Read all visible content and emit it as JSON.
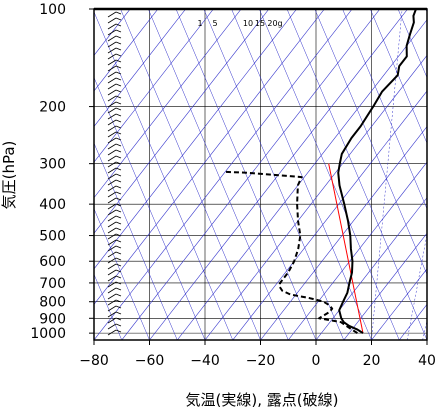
{
  "chart_data": {
    "type": "line",
    "title": "",
    "xlabel": "気温(実線), 露点(破線)",
    "ylabel": "気圧(hPa)",
    "xlim": [
      -80,
      40
    ],
    "ylim": [
      1050,
      100
    ],
    "y_scale": "log",
    "x_ticks": [
      "−80",
      "−60",
      "−40",
      "−20",
      "0",
      "20",
      "40"
    ],
    "y_ticks": [
      "100",
      "200",
      "300",
      "400",
      "500",
      "600",
      "700",
      "800",
      "900",
      "1000"
    ],
    "x_tick_values": [
      -80,
      -60,
      -40,
      -20,
      0,
      20,
      40
    ],
    "y_tick_values": [
      100,
      200,
      300,
      400,
      500,
      600,
      700,
      800,
      900,
      1000
    ],
    "mixing_ratio_labels": [
      "1",
      "5",
      "10",
      "15",
      "20g"
    ],
    "mixing_ratio_values": [
      1,
      5,
      10,
      15,
      20
    ],
    "grid": true,
    "series": [
      {
        "color": "#000000",
        "style": "solid",
        "pressure": [
          1000,
          975,
          950,
          925,
          900,
          850,
          800,
          750,
          700,
          650,
          600,
          550,
          500,
          450,
          400,
          350,
          320,
          300,
          280,
          250,
          230,
          200,
          180,
          160,
          150,
          140,
          130,
          120,
          110,
          105,
          100
        ],
        "values": [
          15,
          12,
          8,
          5,
          3,
          0,
          -1,
          -2,
          -4,
          -6,
          -9,
          -13,
          -17,
          -22,
          -28,
          -35,
          -39,
          -41,
          -43,
          -44,
          -44,
          -45,
          -46,
          -45,
          -47,
          -47,
          -50,
          -52,
          -54,
          -56,
          -57
        ]
      },
      {
        "color": "#000000",
        "style": "dashed",
        "pressure": [
          1000,
          975,
          950,
          925,
          900,
          880,
          860,
          840,
          820,
          800,
          780,
          760,
          740,
          720,
          700,
          650,
          600,
          550,
          500,
          450,
          400,
          350,
          330,
          320,
          318
        ],
        "values": [
          13,
          10,
          7,
          4,
          -5,
          -4,
          -3,
          -3,
          -5,
          -8,
          -14,
          -22,
          -26,
          -28,
          -29,
          -29,
          -30,
          -32,
          -35,
          -40,
          -45,
          -50,
          -51,
          -72,
          -80
        ]
      }
    ],
    "reference_lines": [
      {
        "color": "#ff0000",
        "pressure": [
          1000,
          300
        ],
        "values": [
          15,
          -45
        ]
      }
    ]
  }
}
